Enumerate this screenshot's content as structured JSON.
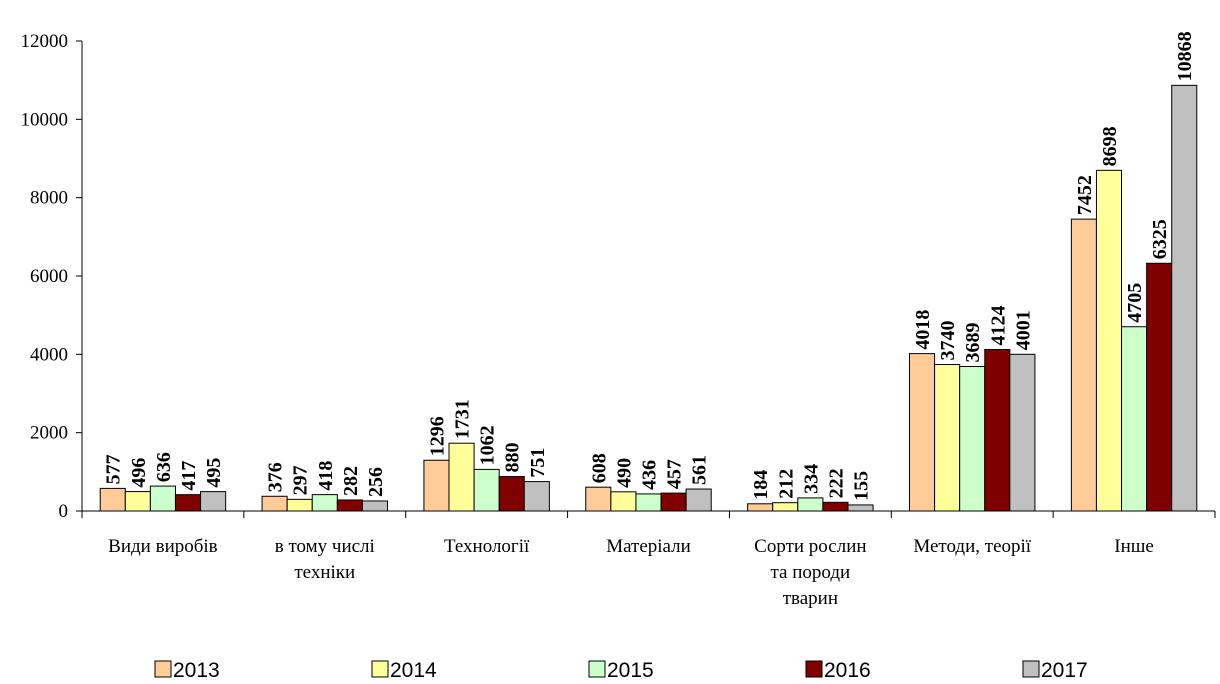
{
  "chart_data": {
    "type": "bar",
    "categories": [
      "Види виробів",
      "в тому числі\nтехніки",
      "Технології",
      "Матеріали",
      "Сорти рослин\nта породи\nтварин",
      "Методи, теорії",
      "Інше"
    ],
    "series": [
      {
        "name": "2013",
        "color": "#ffcc99",
        "values": [
          577,
          376,
          1296,
          608,
          184,
          4018,
          7452
        ]
      },
      {
        "name": "2014",
        "color": "#ffff99",
        "values": [
          496,
          297,
          1731,
          490,
          212,
          3740,
          8698
        ]
      },
      {
        "name": "2015",
        "color": "#ccffcc",
        "values": [
          636,
          418,
          1062,
          436,
          334,
          3689,
          4705
        ]
      },
      {
        "name": "2016",
        "color": "#800000",
        "values": [
          417,
          282,
          880,
          457,
          222,
          4124,
          6325
        ]
      },
      {
        "name": "2017",
        "color": "#c0c0c0",
        "values": [
          495,
          256,
          751,
          561,
          155,
          4001,
          10868
        ]
      }
    ],
    "ylim": [
      0,
      12000
    ],
    "yticks": [
      0,
      2000,
      4000,
      6000,
      8000,
      10000,
      12000
    ],
    "grid": false,
    "legend": "bottom"
  }
}
